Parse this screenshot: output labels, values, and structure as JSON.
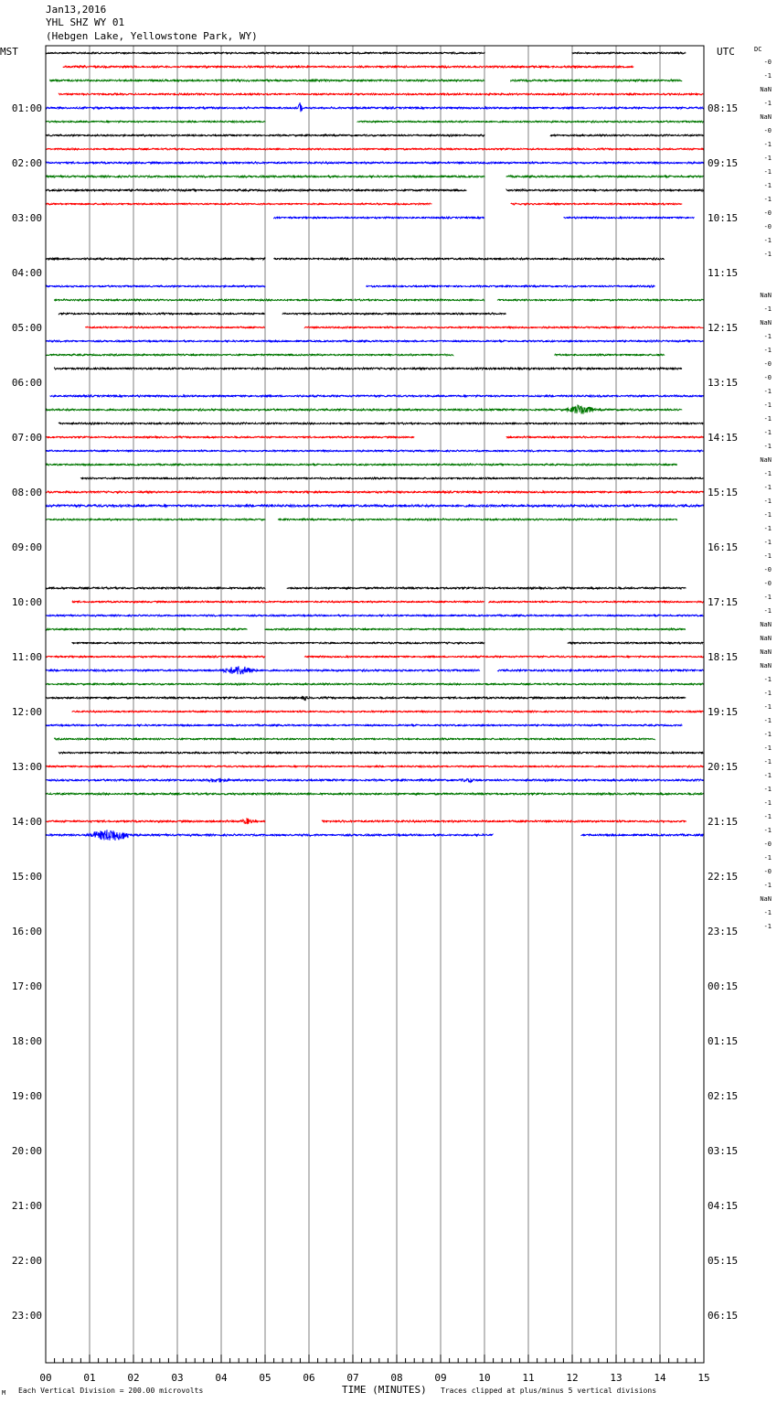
{
  "header": {
    "date": "Jan13,2016",
    "station": "YHL SHZ WY 01",
    "location": "(Hebgen Lake, Yellowstone Park, WY)"
  },
  "left_zone": "MST",
  "right_zone": "UTC",
  "dc_label": "DC",
  "footer": {
    "left_note": "Each Vertical Division =  200.00 microvolts",
    "xlabel": "TIME (MINUTES)",
    "right_note": "Traces clipped at plus/minus 5 vertical divisions",
    "corner_mark": "M"
  },
  "colors": {
    "black": "#000000",
    "red": "#ff0000",
    "blue": "#0000ff",
    "green": "#007700",
    "grid": "#808080"
  },
  "chart_data": {
    "type": "line",
    "title": "YHL SHZ WY 01",
    "xlabel": "TIME (MINUTES)",
    "xlim": [
      0,
      15
    ],
    "x_ticks": [
      "00",
      "01",
      "02",
      "03",
      "04",
      "05",
      "06",
      "07",
      "08",
      "09",
      "10",
      "11",
      "12",
      "13",
      "14",
      "15"
    ],
    "rows_per_hour": 4,
    "hour_labels_left": [
      "01:00",
      "02:00",
      "03:00",
      "04:00",
      "05:00",
      "06:00",
      "07:00",
      "08:00",
      "09:00",
      "10:00",
      "11:00",
      "12:00",
      "13:00",
      "14:00",
      "15:00",
      "16:00",
      "17:00",
      "18:00",
      "19:00",
      "20:00",
      "21:00",
      "22:00",
      "23:00"
    ],
    "hour_labels_right": [
      "08:15",
      "09:15",
      "10:15",
      "11:15",
      "12:15",
      "13:15",
      "14:15",
      "15:15",
      "16:15",
      "17:15",
      "18:15",
      "19:15",
      "20:15",
      "21:15",
      "22:15",
      "23:15",
      "00:15",
      "01:15",
      "02:15",
      "03:15",
      "04:15",
      "05:15",
      "06:15"
    ],
    "right_values": [
      "-0",
      "-1",
      "NaN",
      "-1",
      "NaN",
      "-0",
      "-1",
      "-1",
      "-1",
      "-1",
      "-1",
      "-0",
      "-0",
      "-1",
      "-1",
      "",
      "",
      "NaN",
      "-1",
      "NaN",
      "-1",
      "-1",
      "-0",
      "-0",
      "-1",
      "-1",
      "-1",
      "-1",
      "-1",
      "NaN",
      "-1",
      "-1",
      "-1",
      "-1",
      "-1",
      "-1",
      "-1",
      "-0",
      "-0",
      "-1",
      "-1",
      "NaN",
      "NaN",
      "NaN",
      "NaN",
      "-1",
      "-1",
      "-1",
      "-1",
      "-1",
      "-1",
      "-1",
      "-1",
      "-1",
      "-1",
      "-1",
      "-1",
      "-0",
      "-1",
      "-0",
      "-1",
      "NaN",
      "-1",
      "-1"
    ],
    "traces": [
      {
        "row": 0,
        "color": "black",
        "segments": [
          [
            0,
            10
          ],
          [
            12,
            14.6
          ]
        ],
        "noise": 0.7
      },
      {
        "row": 1,
        "color": "red",
        "segments": [
          [
            0.4,
            10
          ],
          [
            10,
            13.4
          ]
        ],
        "noise": 0.8
      },
      {
        "row": 2,
        "color": "green",
        "segments": [
          [
            0.1,
            10
          ],
          [
            10.6,
            14.5
          ]
        ],
        "noise": 0.8
      },
      {
        "row": 3,
        "color": "red",
        "segments": [
          [
            0.3,
            15
          ]
        ],
        "noise": 0.7
      },
      {
        "row": 4,
        "color": "blue",
        "segments": [
          [
            0,
            15
          ]
        ],
        "noise": 0.8,
        "events": [
          {
            "x": 5.8,
            "amp": 8,
            "width": 0.05
          }
        ]
      },
      {
        "row": 5,
        "color": "green",
        "segments": [
          [
            0,
            5
          ],
          [
            7.1,
            15
          ]
        ],
        "noise": 0.7
      },
      {
        "row": 6,
        "color": "black",
        "segments": [
          [
            0,
            10
          ],
          [
            11.5,
            15
          ]
        ],
        "noise": 0.7
      },
      {
        "row": 7,
        "color": "red",
        "segments": [
          [
            0,
            15
          ]
        ],
        "noise": 0.7
      },
      {
        "row": 8,
        "color": "blue",
        "segments": [
          [
            0,
            15
          ]
        ],
        "noise": 0.8
      },
      {
        "row": 9,
        "color": "green",
        "segments": [
          [
            0,
            10
          ],
          [
            10.5,
            15
          ]
        ],
        "noise": 0.8
      },
      {
        "row": 10,
        "color": "black",
        "segments": [
          [
            0,
            9.6
          ],
          [
            10.5,
            15
          ]
        ],
        "noise": 0.8
      },
      {
        "row": 11,
        "color": "red",
        "segments": [
          [
            0,
            8.8
          ],
          [
            10.6,
            14.5
          ]
        ],
        "noise": 0.7
      },
      {
        "row": 12,
        "color": "blue",
        "segments": [
          [
            5.2,
            10
          ],
          [
            11.8,
            14.8
          ]
        ],
        "noise": 0.7
      },
      {
        "row": 15,
        "color": "black",
        "segments": [
          [
            0,
            5
          ],
          [
            5.2,
            14.1
          ]
        ],
        "noise": 0.8
      },
      {
        "row": 17,
        "color": "blue",
        "segments": [
          [
            0,
            5
          ],
          [
            7.3,
            13.9
          ]
        ],
        "noise": 0.7
      },
      {
        "row": 18,
        "color": "green",
        "segments": [
          [
            0.2,
            10
          ],
          [
            10.3,
            15
          ]
        ],
        "noise": 0.7
      },
      {
        "row": 19,
        "color": "black",
        "segments": [
          [
            0.3,
            5
          ],
          [
            5.4,
            10.5
          ]
        ],
        "noise": 0.7
      },
      {
        "row": 20,
        "color": "red",
        "segments": [
          [
            0.9,
            5
          ],
          [
            5.9,
            15
          ]
        ],
        "noise": 0.7
      },
      {
        "row": 21,
        "color": "blue",
        "segments": [
          [
            0,
            15
          ]
        ],
        "noise": 0.7
      },
      {
        "row": 22,
        "color": "green",
        "segments": [
          [
            0,
            9.3
          ],
          [
            11.6,
            14.1
          ]
        ],
        "noise": 0.7
      },
      {
        "row": 23,
        "color": "black",
        "segments": [
          [
            0.2,
            14.5
          ]
        ],
        "noise": 0.8
      },
      {
        "row": 25,
        "color": "blue",
        "segments": [
          [
            0.1,
            15
          ]
        ],
        "noise": 0.8
      },
      {
        "row": 26,
        "color": "green",
        "segments": [
          [
            0,
            14.5
          ]
        ],
        "noise": 0.8,
        "events": [
          {
            "x": 12.2,
            "amp": 6,
            "width": 0.35
          }
        ]
      },
      {
        "row": 27,
        "color": "black",
        "segments": [
          [
            0.3,
            15
          ]
        ],
        "noise": 0.7
      },
      {
        "row": 28,
        "color": "red",
        "segments": [
          [
            0,
            8.4
          ],
          [
            10.5,
            15
          ]
        ],
        "noise": 0.7
      },
      {
        "row": 29,
        "color": "blue",
        "segments": [
          [
            0,
            15
          ]
        ],
        "noise": 0.7
      },
      {
        "row": 30,
        "color": "green",
        "segments": [
          [
            0,
            14.4
          ]
        ],
        "noise": 0.7
      },
      {
        "row": 31,
        "color": "black",
        "segments": [
          [
            0.8,
            15
          ]
        ],
        "noise": 0.7
      },
      {
        "row": 32,
        "color": "red",
        "segments": [
          [
            0,
            15
          ]
        ],
        "noise": 0.8
      },
      {
        "row": 33,
        "color": "blue",
        "segments": [
          [
            0,
            15
          ]
        ],
        "noise": 1.0
      },
      {
        "row": 34,
        "color": "green",
        "segments": [
          [
            0,
            5
          ],
          [
            5.3,
            14.4
          ]
        ],
        "noise": 0.7
      },
      {
        "row": 39,
        "color": "black",
        "segments": [
          [
            0,
            5
          ],
          [
            5.5,
            14.6
          ]
        ],
        "noise": 0.8
      },
      {
        "row": 40,
        "color": "red",
        "segments": [
          [
            0.6,
            10
          ],
          [
            10.1,
            15
          ]
        ],
        "noise": 0.7
      },
      {
        "row": 41,
        "color": "blue",
        "segments": [
          [
            0,
            15
          ]
        ],
        "noise": 0.7
      },
      {
        "row": 42,
        "color": "green",
        "segments": [
          [
            0,
            4.6
          ],
          [
            5,
            14.6
          ]
        ],
        "noise": 0.7
      },
      {
        "row": 43,
        "color": "black",
        "segments": [
          [
            0.6,
            10
          ],
          [
            11.9,
            15
          ]
        ],
        "noise": 0.7
      },
      {
        "row": 44,
        "color": "red",
        "segments": [
          [
            0,
            5
          ],
          [
            5.9,
            15
          ]
        ],
        "noise": 0.7
      },
      {
        "row": 45,
        "color": "blue",
        "segments": [
          [
            0,
            9.9
          ],
          [
            10.3,
            15
          ]
        ],
        "noise": 0.8,
        "events": [
          {
            "x": 4.4,
            "amp": 5,
            "width": 0.45
          }
        ]
      },
      {
        "row": 46,
        "color": "green",
        "segments": [
          [
            0,
            15
          ]
        ],
        "noise": 0.7
      },
      {
        "row": 47,
        "color": "black",
        "segments": [
          [
            0,
            14.6
          ]
        ],
        "noise": 0.8,
        "events": [
          {
            "x": 5.9,
            "amp": 3,
            "width": 0.08
          }
        ]
      },
      {
        "row": 48,
        "color": "red",
        "segments": [
          [
            0.6,
            15
          ]
        ],
        "noise": 0.7
      },
      {
        "row": 49,
        "color": "blue",
        "segments": [
          [
            0,
            14.5
          ]
        ],
        "noise": 0.7
      },
      {
        "row": 50,
        "color": "green",
        "segments": [
          [
            0.2,
            13.9
          ]
        ],
        "noise": 0.7
      },
      {
        "row": 51,
        "color": "black",
        "segments": [
          [
            0.3,
            15
          ]
        ],
        "noise": 0.7
      },
      {
        "row": 52,
        "color": "red",
        "segments": [
          [
            0,
            15
          ]
        ],
        "noise": 0.7
      },
      {
        "row": 53,
        "color": "blue",
        "segments": [
          [
            0,
            15
          ]
        ],
        "noise": 0.8,
        "events": [
          {
            "x": 3.9,
            "amp": 2,
            "width": 0.3
          },
          {
            "x": 9.6,
            "amp": 2,
            "width": 0.2
          }
        ]
      },
      {
        "row": 54,
        "color": "green",
        "segments": [
          [
            0,
            15
          ]
        ],
        "noise": 0.8
      },
      {
        "row": 56,
        "color": "red",
        "segments": [
          [
            0,
            5
          ],
          [
            6.3,
            14.6
          ]
        ],
        "noise": 0.8,
        "events": [
          {
            "x": 4.6,
            "amp": 2.5,
            "width": 0.2
          }
        ]
      },
      {
        "row": 57,
        "color": "blue",
        "segments": [
          [
            0,
            10.2
          ],
          [
            12.2,
            15
          ]
        ],
        "noise": 0.8,
        "events": [
          {
            "x": 1.5,
            "amp": 7,
            "width": 0.6
          }
        ]
      }
    ]
  }
}
